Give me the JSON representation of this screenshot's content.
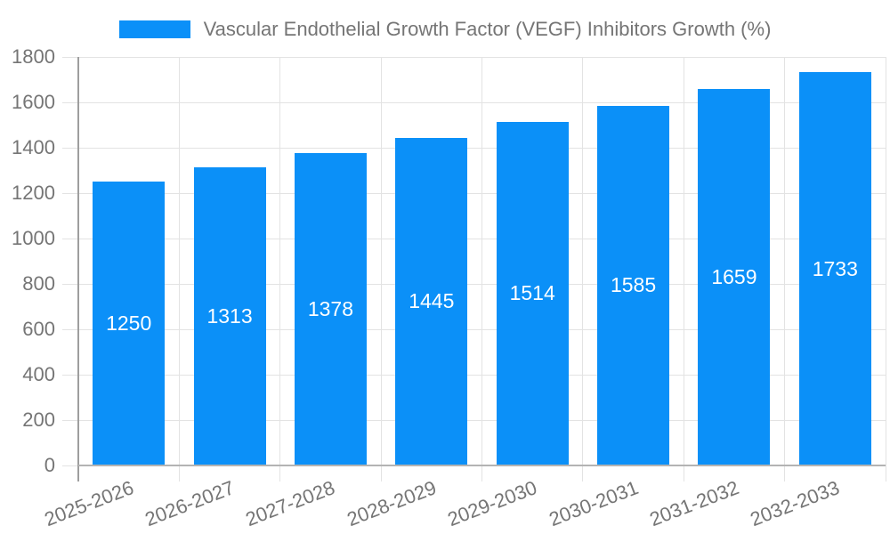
{
  "chart_data": {
    "type": "bar",
    "title": "Vascular Endothelial Growth Factor (VEGF) Inhibitors Growth (%)",
    "categories": [
      "2025-2026",
      "2026-2027",
      "2027-2028",
      "2028-2029",
      "2029-2030",
      "2030-2031",
      "2031-2032",
      "2032-2033"
    ],
    "values": [
      1250,
      1313,
      1378,
      1445,
      1514,
      1585,
      1659,
      1733
    ],
    "xlabel": "",
    "ylabel": "",
    "ylim": [
      0,
      1800
    ],
    "yticks": [
      0,
      200,
      400,
      600,
      800,
      1000,
      1200,
      1400,
      1600,
      1800
    ],
    "grid": true,
    "legend_position": "top-center",
    "bar_color": "#0b90f8",
    "value_label_color": "#ffffff"
  },
  "colors": {
    "background": "#ffffff",
    "gridline": "#e3e3e3",
    "y_axis_line": "#9e9e9e",
    "x_axis_line": "#b3b3b3",
    "tick_text": "#757575",
    "legend_text": "#757575"
  }
}
